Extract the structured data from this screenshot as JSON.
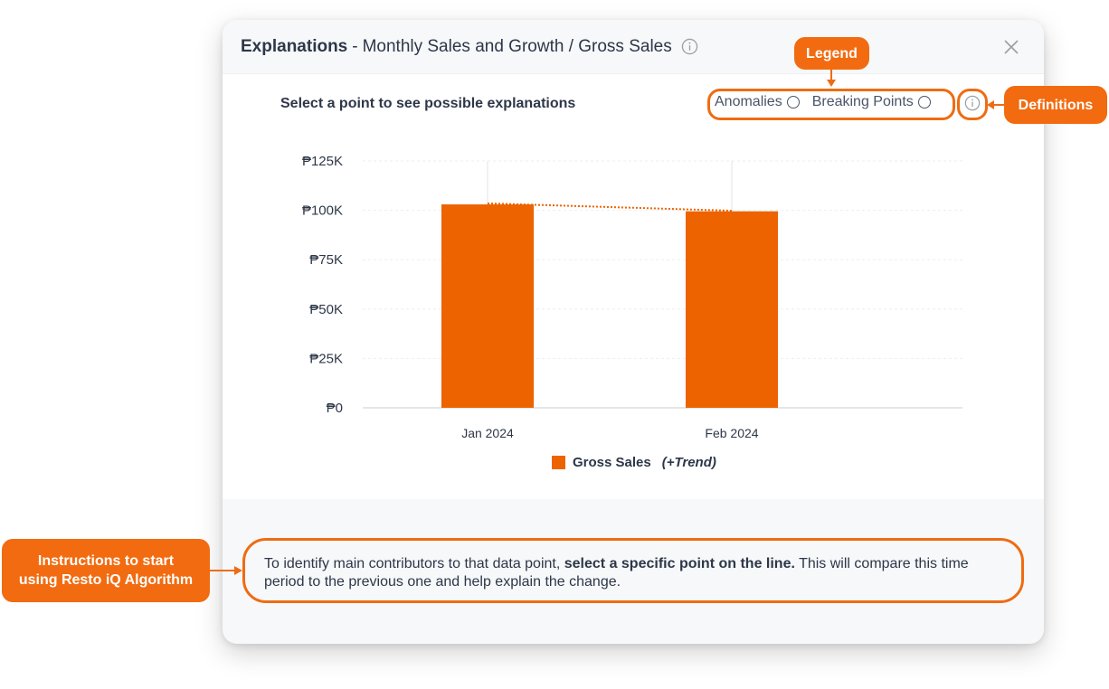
{
  "modal": {
    "title_main": "Explanations",
    "title_sep": "-",
    "title_sub": "Monthly Sales and Growth / Gross Sales",
    "prompt": "Select a point to see possible explanations",
    "options": [
      "Anomalies",
      "Breaking Points"
    ],
    "instructions_pre": "To identify main contributors to that data point, ",
    "instructions_bold": "select a specific point on the line.",
    "instructions_post": " This will compare this time period to the previous one and help explain the change."
  },
  "chart_data": {
    "type": "bar",
    "categories": [
      "Jan 2024",
      "Feb 2024"
    ],
    "series": [
      {
        "name": "Gross Sales",
        "values": [
          103000,
          99500
        ]
      }
    ],
    "trend": [
      103500,
      99800
    ],
    "ylim": [
      0,
      125000
    ],
    "yticks": [
      0,
      25000,
      50000,
      75000,
      100000,
      125000
    ],
    "ytick_labels": [
      "₱0",
      "₱25K",
      "₱50K",
      "₱75K",
      "₱100K",
      "₱125K"
    ],
    "legend_name": "Gross Sales",
    "legend_suffix": "(+Trend)",
    "legend_position": "bottom-center",
    "grid": true,
    "bar_color": "#ec6300"
  },
  "callouts": {
    "legend": "Legend",
    "definitions": "Definitions",
    "instructions_line1": "Instructions to start",
    "instructions_line2": "using Resto iQ Algorithm"
  },
  "colors": {
    "accent": "#f26b10"
  }
}
